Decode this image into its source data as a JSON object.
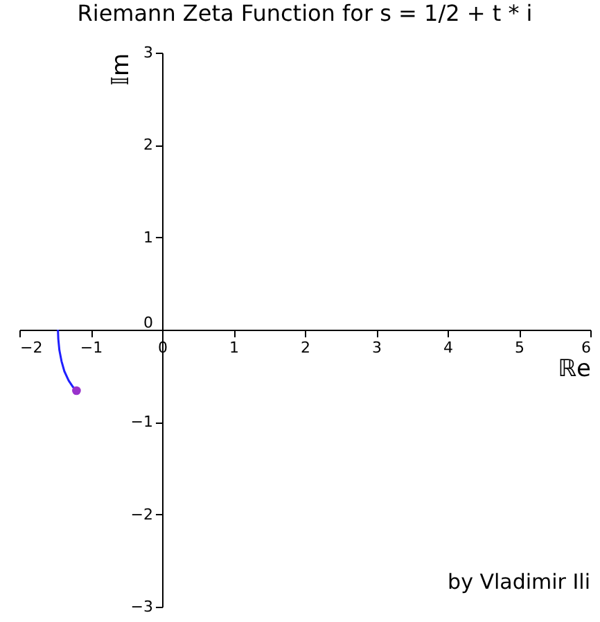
{
  "chart_data": {
    "type": "line",
    "title": "Riemann Zeta Function for s = 1/2 + t * i",
    "xlabel": "ℝe",
    "ylabel": "𝕀m",
    "x": [
      -1.46,
      -1.455,
      -1.44,
      -1.41,
      -1.37,
      -1.31,
      -1.25,
      -1.2
    ],
    "series": [
      {
        "color": "#1f1fff",
        "values": [
          0,
          -0.1,
          -0.22,
          -0.34,
          -0.45,
          -0.55,
          -0.62,
          -0.66
        ]
      },
      {
        "type": "scatter",
        "color": "#9932cc",
        "x": [
          -1.2
        ],
        "values": [
          -0.66
        ]
      }
    ],
    "xlim": [
      -2,
      6
    ],
    "ylim": [
      -3,
      3
    ],
    "xticks": [
      -2,
      -1,
      0,
      1,
      2,
      3,
      4,
      5,
      6
    ],
    "yticks": [
      -3,
      -2,
      -1,
      0,
      1,
      2,
      3
    ],
    "line_style": "solid",
    "annotations": [
      "by Vladimir Ili"
    ]
  }
}
